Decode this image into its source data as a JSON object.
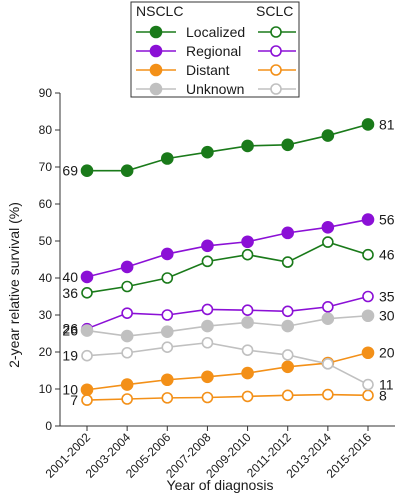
{
  "chart_data": {
    "type": "line",
    "xlabel": "Year of diagnosis",
    "ylabel": "2-year relative survival (%)",
    "ylim": [
      0,
      90
    ],
    "yticks": [
      0,
      10,
      20,
      30,
      40,
      50,
      60,
      70,
      80,
      90
    ],
    "categories": [
      "2001-2002",
      "2003-2004",
      "2005-2006",
      "2007-2008",
      "2009-2010",
      "2011-2012",
      "2013-2014",
      "2015-2016"
    ],
    "legend": {
      "placement": "top",
      "header_left": "NSCLC",
      "header_right": "SCLC",
      "entries": [
        "Localized",
        "Regional",
        "Distant",
        "Unknown"
      ]
    },
    "series": [
      {
        "group": "NSCLC",
        "stage": "Localized",
        "color": "#1a7a1a",
        "marker": "filled",
        "values": [
          69,
          69,
          72.3,
          74,
          75.7,
          76,
          78.5,
          81.5
        ],
        "label_start": "69",
        "label_end": "81"
      },
      {
        "group": "SCLC",
        "stage": "Localized",
        "color": "#1a7a1a",
        "marker": "open",
        "values": [
          36,
          37.7,
          40,
          44.5,
          46.3,
          44.3,
          49.7,
          46.3
        ],
        "label_start": "36",
        "label_end": "46"
      },
      {
        "group": "NSCLC",
        "stage": "Regional",
        "color": "#8b10d6",
        "marker": "filled",
        "values": [
          40.3,
          43,
          46.5,
          48.7,
          49.8,
          52.2,
          53.7,
          55.8
        ],
        "label_start": "40",
        "label_end": "56"
      },
      {
        "group": "SCLC",
        "stage": "Regional",
        "color": "#8b10d6",
        "marker": "open",
        "values": [
          26.3,
          30.5,
          30,
          31.5,
          31.3,
          31,
          32.2,
          35
        ],
        "label_start": "26",
        "label_end": "35"
      },
      {
        "group": "NSCLC",
        "stage": "Distant",
        "color": "#f39018",
        "marker": "filled",
        "values": [
          9.8,
          11.2,
          12.5,
          13.3,
          14.3,
          16,
          17,
          19.8
        ],
        "label_start": "10",
        "label_end": "20"
      },
      {
        "group": "SCLC",
        "stage": "Distant",
        "color": "#f39018",
        "marker": "open",
        "values": [
          7,
          7.3,
          7.6,
          7.7,
          8,
          8.3,
          8.5,
          8.3
        ],
        "label_start": "7",
        "label_end": "8"
      },
      {
        "group": "NSCLC",
        "stage": "Unknown",
        "color": "#c0c0c0",
        "marker": "filled",
        "values": [
          25.8,
          24.3,
          25.5,
          27,
          28,
          27,
          29,
          29.8
        ],
        "label_start": "26",
        "label_end": "30"
      },
      {
        "group": "SCLC",
        "stage": "Unknown",
        "color": "#c0c0c0",
        "marker": "open",
        "values": [
          19,
          19.8,
          21.3,
          22.5,
          20.5,
          19.2,
          16.8,
          11.2
        ],
        "label_start": "19",
        "label_end": "11"
      }
    ]
  }
}
